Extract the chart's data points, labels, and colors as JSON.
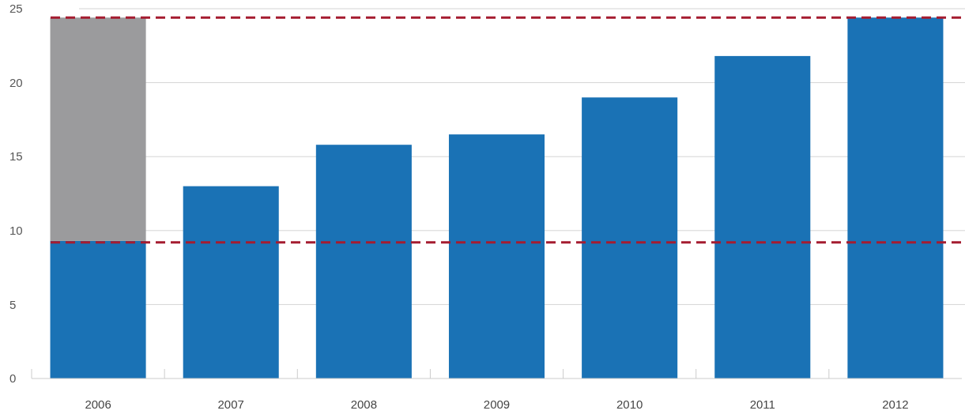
{
  "chart_data": {
    "type": "bar",
    "stacked": true,
    "categories": [
      "2006",
      "2007",
      "2008",
      "2009",
      "2010",
      "2011",
      "2012"
    ],
    "series": [
      {
        "color": "#1a72b5",
        "values": [
          9.3,
          13.0,
          15.8,
          16.5,
          19.0,
          21.8,
          24.4
        ]
      },
      {
        "color": "#9b9b9d",
        "values": [
          15.1,
          null,
          null,
          null,
          null,
          null,
          null
        ]
      }
    ],
    "ylim": [
      0,
      25
    ],
    "yticks": [
      0,
      5,
      10,
      15,
      20,
      25
    ],
    "grid": "y",
    "ref_lines": [
      {
        "axis": "y",
        "value": 24.4,
        "color": "#a51c30",
        "line_style": "dashed"
      },
      {
        "axis": "y",
        "value": 9.2,
        "color": "#a51c30",
        "line_style": "dashed"
      }
    ]
  }
}
